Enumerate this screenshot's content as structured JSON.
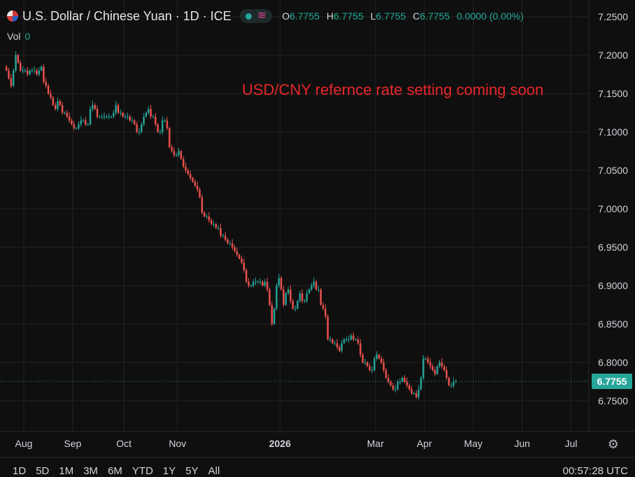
{
  "header": {
    "title": "U.S. Dollar / Chinese Yuan · 1D · ICE",
    "ohlc": [
      {
        "key": "O",
        "value": "6.7755"
      },
      {
        "key": "H",
        "value": "6.7755"
      },
      {
        "key": "L",
        "value": "6.7755"
      },
      {
        "key": "C",
        "value": "6.7755"
      }
    ],
    "change": "0.0000 (0.00%)"
  },
  "volume": {
    "label": "Vol",
    "value": "0"
  },
  "annotation": "USD/CNY refernce rate setting coming soon",
  "current_price": "6.7755",
  "ranges": [
    "1D",
    "5D",
    "1M",
    "3M",
    "6M",
    "YTD",
    "1Y",
    "5Y",
    "All"
  ],
  "clock": "00:57:28 UTC",
  "colors": {
    "up": "#26a69a",
    "down": "#ef5350",
    "annotation": "#e8262b"
  },
  "chart_data": {
    "type": "line",
    "y_ticks": [
      "7.2500",
      "7.2000",
      "7.1500",
      "7.1000",
      "7.0500",
      "7.0000",
      "6.9500",
      "6.9000",
      "6.8500",
      "6.8000",
      "6.7500"
    ],
    "ylim": [
      6.73,
      7.265
    ],
    "x_ticks": [
      "Aug",
      "Sep",
      "Oct",
      "Nov",
      "2026",
      "Mar",
      "Apr",
      "May",
      "Jun",
      "Jul"
    ],
    "x_tick_index": [
      0,
      21,
      43,
      66,
      110,
      151,
      172,
      193,
      214,
      235
    ],
    "series": [
      {
        "values": [
          7.18,
          7.17,
          7.16,
          7.18,
          7.2,
          7.19,
          7.18,
          7.18,
          7.18,
          7.175,
          7.18,
          7.18,
          7.18,
          7.175,
          7.18,
          7.185,
          7.165,
          7.16,
          7.15,
          7.145,
          7.135,
          7.13,
          7.14,
          7.135,
          7.125,
          7.125,
          7.12,
          7.115,
          7.11,
          7.105,
          7.105,
          7.11,
          7.115,
          7.115,
          7.11,
          7.11,
          7.13,
          7.135,
          7.13,
          7.12,
          7.12,
          7.12,
          7.12,
          7.12,
          7.12,
          7.12,
          7.125,
          7.135,
          7.125,
          7.125,
          7.12,
          7.12,
          7.12,
          7.115,
          7.115,
          7.11,
          7.1,
          7.1,
          7.11,
          7.12,
          7.125,
          7.13,
          7.12,
          7.12,
          7.11,
          7.1,
          7.1,
          7.115,
          7.115,
          7.105,
          7.08,
          7.075,
          7.07,
          7.07,
          7.075,
          7.065,
          7.055,
          7.05,
          7.045,
          7.04,
          7.035,
          7.03,
          7.025,
          7.015,
          6.995,
          6.99,
          6.99,
          6.985,
          6.98,
          6.98,
          6.975,
          6.975,
          6.965,
          6.965,
          6.96,
          6.955,
          6.955,
          6.95,
          6.945,
          6.94,
          6.935,
          6.93,
          6.92,
          6.905,
          6.9,
          6.9,
          6.905,
          6.905,
          6.905,
          6.905,
          6.9,
          6.905,
          6.895,
          6.875,
          6.85,
          6.87,
          6.9,
          6.91,
          6.895,
          6.875,
          6.89,
          6.895,
          6.88,
          6.87,
          6.87,
          6.88,
          6.89,
          6.88,
          6.88,
          6.89,
          6.895,
          6.9,
          6.905,
          6.895,
          6.895,
          6.875,
          6.87,
          6.86,
          6.83,
          6.83,
          6.825,
          6.825,
          6.82,
          6.815,
          6.825,
          6.83,
          6.83,
          6.83,
          6.835,
          6.83,
          6.83,
          6.825,
          6.81,
          6.8,
          6.8,
          6.795,
          6.79,
          6.79,
          6.805,
          6.81,
          6.805,
          6.8,
          6.79,
          6.78,
          6.775,
          6.77,
          6.765,
          6.765,
          6.775,
          6.775,
          6.78,
          6.775,
          6.77,
          6.765,
          6.76,
          6.76,
          6.755,
          6.765,
          6.78,
          6.805,
          6.805,
          6.8,
          6.795,
          6.79,
          6.785,
          6.795,
          6.8,
          6.795,
          6.79,
          6.78,
          6.77,
          6.77,
          6.775,
          6.7755
        ]
      }
    ]
  }
}
